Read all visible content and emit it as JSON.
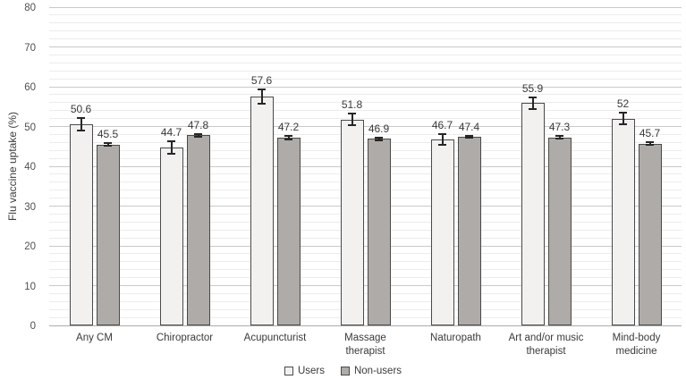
{
  "chart_data": {
    "type": "bar",
    "title": "",
    "xlabel": "",
    "ylabel": "Flu vaccine uptake (%)",
    "ylim": [
      0,
      80
    ],
    "y_major_step": 10,
    "y_minor_step": 2,
    "grid": "on",
    "legend_position": "bottom-center",
    "categories": [
      "Any CM",
      "Chiropractor",
      "Acupuncturist",
      "Massage therapist",
      "Naturopath",
      "Art and/or music therapist",
      "Mind-body medicine"
    ],
    "series": [
      {
        "name": "Users",
        "values": [
          50.6,
          44.7,
          57.6,
          51.8,
          46.7,
          55.9,
          52
        ],
        "value_labels": [
          "50.6",
          "44.7",
          "57.6",
          "51.8",
          "46.7",
          "55.9",
          "52"
        ],
        "errors": [
          1.5,
          1.5,
          1.8,
          1.5,
          1.4,
          1.5,
          1.5
        ],
        "fill": "#f2f1ef",
        "border": "#4a4a4a"
      },
      {
        "name": "Non-users",
        "values": [
          45.5,
          47.8,
          47.2,
          46.9,
          47.4,
          47.3,
          45.7
        ],
        "value_labels": [
          "45.5",
          "47.8",
          "47.2",
          "46.9",
          "47.4",
          "47.3",
          "45.7"
        ],
        "errors": [
          0.4,
          0.4,
          0.35,
          0.35,
          0.3,
          0.4,
          0.3
        ],
        "fill": "#aeaba8",
        "border": "#4a4a4a"
      }
    ],
    "colors": {
      "major_grid": "#c9c9c9",
      "minor_grid": "#ececec",
      "baseline": "#ababab",
      "error_bar": "#262626",
      "text": "#3a3a3a"
    }
  }
}
